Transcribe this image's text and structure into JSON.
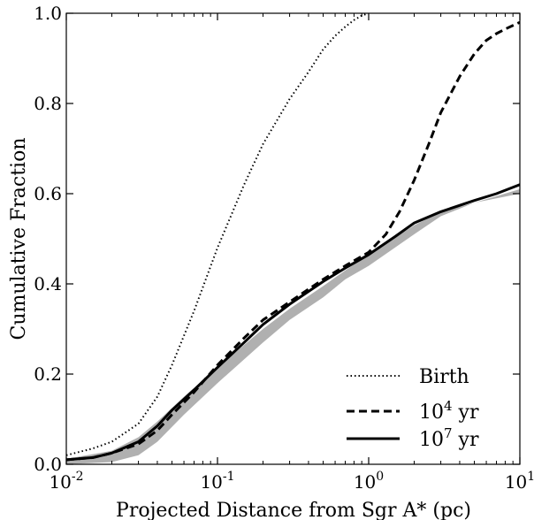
{
  "chart_data": {
    "type": "line",
    "xlabel": "Projected Distance from Sgr A* (pc)",
    "ylabel": "Cumulative Fraction",
    "xscale": "log",
    "xlim": [
      0.01,
      10
    ],
    "ylim": [
      0.0,
      1.0
    ],
    "grid": false,
    "legend_position": "bottom-right",
    "x_ticks": [
      {
        "value": 0.01,
        "base": "10",
        "exp": "-2"
      },
      {
        "value": 0.1,
        "base": "10",
        "exp": "-1"
      },
      {
        "value": 1,
        "base": "10",
        "exp": "0"
      },
      {
        "value": 10,
        "base": "10",
        "exp": "1"
      }
    ],
    "y_ticks": [
      {
        "value": 0.0,
        "label": "0.0"
      },
      {
        "value": 0.2,
        "label": "0.2"
      },
      {
        "value": 0.4,
        "label": "0.4"
      },
      {
        "value": 0.6,
        "label": "0.6"
      },
      {
        "value": 0.8,
        "label": "0.8"
      },
      {
        "value": 1.0,
        "label": "1.0"
      }
    ],
    "band": {
      "color": "#b0b0b0",
      "x": [
        0.01,
        0.02,
        0.03,
        0.04,
        0.06,
        0.1,
        0.2,
        0.3,
        0.5,
        0.7,
        1,
        2,
        3,
        5,
        10
      ],
      "lower": [
        0.0,
        0.005,
        0.02,
        0.05,
        0.11,
        0.18,
        0.27,
        0.32,
        0.37,
        0.41,
        0.44,
        0.51,
        0.55,
        0.58,
        0.6
      ],
      "upper": [
        0.012,
        0.03,
        0.06,
        0.095,
        0.15,
        0.215,
        0.3,
        0.345,
        0.395,
        0.43,
        0.465,
        0.53,
        0.56,
        0.58,
        0.61
      ]
    },
    "series": [
      {
        "name": "Birth",
        "style": "dotted",
        "label_parts": {
          "base": "Birth",
          "exp": "",
          "suffix": ""
        },
        "x": [
          0.01,
          0.015,
          0.02,
          0.03,
          0.04,
          0.05,
          0.07,
          0.1,
          0.15,
          0.2,
          0.3,
          0.4,
          0.5,
          0.6,
          0.7,
          0.8,
          0.9,
          1.0
        ],
        "y": [
          0.02,
          0.035,
          0.05,
          0.09,
          0.15,
          0.22,
          0.34,
          0.48,
          0.62,
          0.71,
          0.81,
          0.87,
          0.92,
          0.95,
          0.97,
          0.985,
          0.995,
          1.0
        ]
      },
      {
        "name": "10^4 yr",
        "style": "dashed",
        "label_parts": {
          "base": "10",
          "exp": "4",
          "suffix": " yr"
        },
        "x": [
          0.01,
          0.015,
          0.02,
          0.03,
          0.04,
          0.05,
          0.07,
          0.1,
          0.15,
          0.2,
          0.3,
          0.5,
          0.7,
          1.0,
          1.3,
          1.6,
          2,
          2.5,
          3,
          4,
          5,
          6,
          7,
          8,
          10
        ],
        "y": [
          0.01,
          0.015,
          0.025,
          0.045,
          0.075,
          0.11,
          0.16,
          0.22,
          0.28,
          0.32,
          0.36,
          0.41,
          0.44,
          0.47,
          0.51,
          0.56,
          0.63,
          0.71,
          0.78,
          0.86,
          0.91,
          0.94,
          0.955,
          0.965,
          0.98
        ]
      },
      {
        "name": "10^7 yr",
        "style": "solid",
        "label_parts": {
          "base": "10",
          "exp": "7",
          "suffix": " yr"
        },
        "x": [
          0.01,
          0.015,
          0.02,
          0.03,
          0.04,
          0.05,
          0.07,
          0.1,
          0.15,
          0.2,
          0.3,
          0.5,
          0.7,
          1.0,
          1.5,
          2,
          3,
          5,
          7,
          10
        ],
        "y": [
          0.01,
          0.015,
          0.025,
          0.05,
          0.085,
          0.12,
          0.165,
          0.215,
          0.27,
          0.31,
          0.355,
          0.405,
          0.435,
          0.465,
          0.505,
          0.535,
          0.56,
          0.585,
          0.6,
          0.62
        ]
      }
    ]
  }
}
